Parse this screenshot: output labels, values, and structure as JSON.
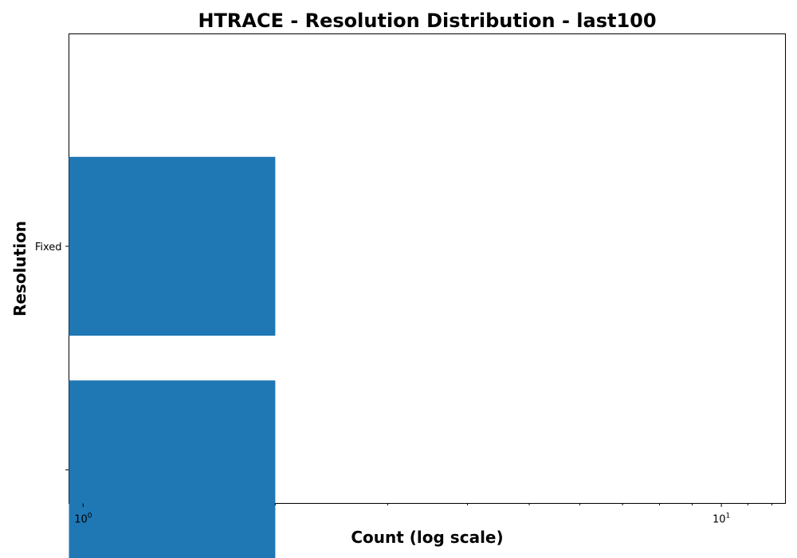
{
  "chart_data": {
    "type": "bar",
    "orientation": "horizontal",
    "title": "HTRACE - Resolution Distribution - last100",
    "xlabel": "Count (log scale)",
    "ylabel": "Resolution",
    "xscale": "log",
    "xlim": [
      0.95,
      12.6
    ],
    "x_ticks": [
      {
        "value": 1,
        "base": "10",
        "exp": "0"
      },
      {
        "value": 10,
        "base": "10",
        "exp": "1"
      }
    ],
    "categories": [
      "Fixed",
      ""
    ],
    "values": [
      2,
      2
    ],
    "bar_color": "#1f77b4",
    "grid": false,
    "legend": "none"
  }
}
